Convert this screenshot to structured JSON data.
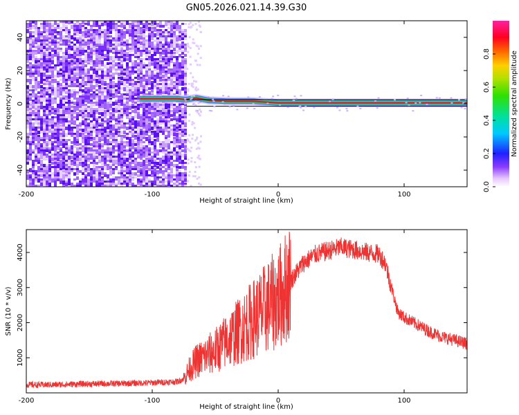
{
  "figure_title": "GN05.2026.021.14.39.G30",
  "colors": {
    "snr_line": "#ee3333",
    "frequency_track": "#e8102a",
    "noise": "#6a1cf0",
    "axes": "#000000"
  },
  "colorbar": {
    "label": "Normalized spectral amplitude",
    "ticks": [
      "0.0",
      "0.2",
      "0.4",
      "0.6",
      "0.8"
    ],
    "tick_values": [
      0.0,
      0.2,
      0.4,
      0.6,
      0.8
    ],
    "range": [
      0,
      1
    ]
  },
  "chart_data": [
    {
      "type": "heatmap",
      "name": "spectrogram",
      "title": "GN05.2026.021.14.39.G30",
      "xlabel": "Height of straight line (km)",
      "ylabel": "Frequency (Hz)",
      "xlim": [
        -200,
        150
      ],
      "ylim": [
        -50,
        50
      ],
      "x_ticks": [
        -200,
        -100,
        0,
        100
      ],
      "x_tick_labels": [
        "-200",
        "-100",
        "0",
        "100"
      ],
      "y_ticks": [
        -40,
        -20,
        0,
        20,
        40
      ],
      "y_tick_labels": [
        "-40",
        "-20",
        "0",
        "20",
        "40"
      ],
      "noise_region_x": [
        -200,
        -73
      ],
      "track": {
        "x": [
          -110,
          -100,
          -90,
          -80,
          -73,
          -65,
          -55,
          -40,
          -20,
          -10,
          0,
          20,
          40,
          60,
          80,
          100,
          120,
          150
        ],
        "frequency": [
          3,
          3,
          3,
          3,
          2.5,
          3.5,
          2,
          1.5,
          1.5,
          1,
          0.5,
          0.5,
          0.5,
          0.5,
          0.5,
          0.5,
          0.5,
          0.5
        ]
      }
    },
    {
      "type": "line",
      "name": "snr",
      "xlabel": "Height of straight line (km)",
      "ylabel": "SNR (10 * v/v)",
      "xlim": [
        -200,
        150
      ],
      "ylim": [
        0,
        4650
      ],
      "x_ticks": [
        -200,
        -100,
        0,
        100
      ],
      "x_tick_labels": [
        "-200",
        "-100",
        "0",
        "100"
      ],
      "y_ticks": [
        1000,
        2000,
        3000,
        4000
      ],
      "y_tick_labels": [
        "1000",
        "2000",
        "3000",
        "4000"
      ],
      "series": [
        {
          "name": "SNR",
          "x": [
            -200,
            -180,
            -160,
            -140,
            -120,
            -100,
            -80,
            -75,
            -70,
            -65,
            -60,
            -50,
            -40,
            -30,
            -20,
            -10,
            0,
            10,
            20,
            30,
            40,
            50,
            60,
            70,
            80,
            85,
            90,
            95,
            100,
            110,
            120,
            130,
            140,
            150
          ],
          "y": [
            230,
            230,
            250,
            260,
            270,
            290,
            320,
            400,
            700,
            900,
            1000,
            1200,
            1500,
            1800,
            2100,
            2400,
            2700,
            3200,
            3700,
            3950,
            4050,
            4150,
            4080,
            4000,
            3950,
            3700,
            3000,
            2300,
            2150,
            1950,
            1750,
            1600,
            1500,
            1400
          ]
        }
      ]
    }
  ]
}
